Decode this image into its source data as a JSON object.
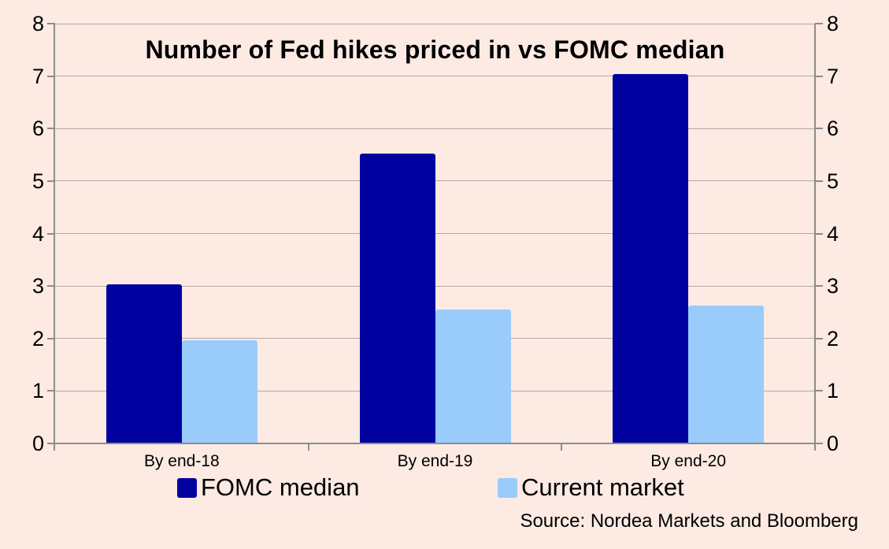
{
  "page": {
    "background_color": "#FCEAE3"
  },
  "chart_data": {
    "type": "bar",
    "title": "Number of Fed hikes priced in vs FOMC median",
    "categories": [
      "By end-18",
      "By end-19",
      "By end-20"
    ],
    "series": [
      {
        "name": "FOMC median",
        "color": "#0101A0",
        "values": [
          3.03,
          5.53,
          7.04
        ]
      },
      {
        "name": "Current market",
        "color": "#99CBFB",
        "values": [
          1.97,
          2.55,
          2.63
        ]
      }
    ],
    "xlabel": "",
    "ylabel": "",
    "ylim": [
      0,
      8
    ],
    "yticks": [
      0,
      1,
      2,
      3,
      4,
      5,
      6,
      7,
      8
    ],
    "y_axis_label_sides": "both",
    "grid": "horizontal",
    "legend_position": "bottom",
    "source": "Source: Nordea Markets and Bloomberg",
    "gridline_color": "#B3A9A3",
    "axis_color": "#8C8C8C",
    "text_color": "#000000"
  }
}
